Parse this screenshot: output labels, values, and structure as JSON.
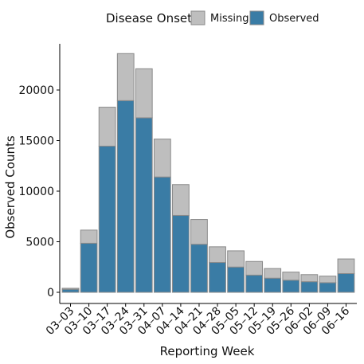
{
  "chart_data": {
    "type": "bar",
    "stacked": true,
    "legend": {
      "title": "Disease Onset",
      "placement": "top",
      "entries": [
        "Missing",
        "Observed"
      ]
    },
    "xlabel": "Reporting Week",
    "ylabel": "Observed Counts",
    "ylim": [
      0,
      24500
    ],
    "yticks": [
      0,
      5000,
      10000,
      15000,
      20000
    ],
    "grid": false,
    "categories": [
      "03–03",
      "03–10",
      "03–17",
      "03–24",
      "03–31",
      "04–07",
      "04–14",
      "04–21",
      "04–28",
      "05–05",
      "05–12",
      "05–19",
      "05–26",
      "06–02",
      "06–09",
      "06–16"
    ],
    "series": [
      {
        "name": "Observed",
        "color": "#3a7ca5",
        "values": [
          300,
          4850,
          14450,
          18950,
          17250,
          11400,
          7600,
          4750,
          2950,
          2500,
          1700,
          1400,
          1200,
          1050,
          950,
          1850
        ]
      },
      {
        "name": "Missing",
        "color": "#bebebe",
        "values": [
          100,
          1300,
          3850,
          4650,
          4850,
          3750,
          3050,
          2450,
          1550,
          1600,
          1350,
          950,
          800,
          700,
          650,
          1450
        ]
      }
    ]
  }
}
